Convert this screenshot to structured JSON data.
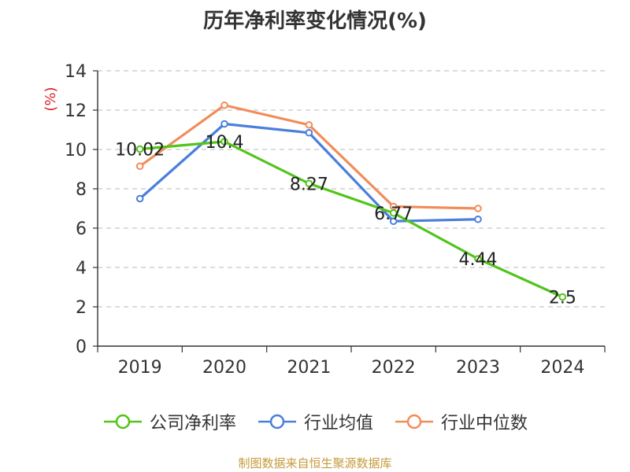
{
  "chart_data": {
    "type": "line",
    "title": "历年净利率变化情况(%)",
    "ylabel": "(%)",
    "xlabel": "",
    "categories": [
      "2019",
      "2020",
      "2021",
      "2022",
      "2023",
      "2024"
    ],
    "ylim": [
      0,
      14
    ],
    "yticks": [
      0,
      2,
      4,
      6,
      8,
      10,
      12,
      14
    ],
    "grid": true,
    "legend_position": "bottom",
    "series": [
      {
        "name": "公司净利率",
        "color": "#52c41a",
        "values": [
          10.02,
          10.4,
          8.27,
          6.77,
          4.44,
          2.5
        ],
        "show_labels": true
      },
      {
        "name": "行业均值",
        "color": "#4a7fdc",
        "values": [
          7.5,
          11.3,
          10.85,
          6.35,
          6.45,
          null
        ],
        "show_labels": false
      },
      {
        "name": "行业中位数",
        "color": "#f28c5a",
        "values": [
          9.15,
          12.25,
          11.25,
          7.1,
          7.0,
          null
        ],
        "show_labels": false
      }
    ],
    "data_labels": [
      "10.02",
      "10.4",
      "8.27",
      "6.77",
      "4.44",
      "2.5"
    ]
  },
  "source_note": "制图数据来自恒生聚源数据库"
}
